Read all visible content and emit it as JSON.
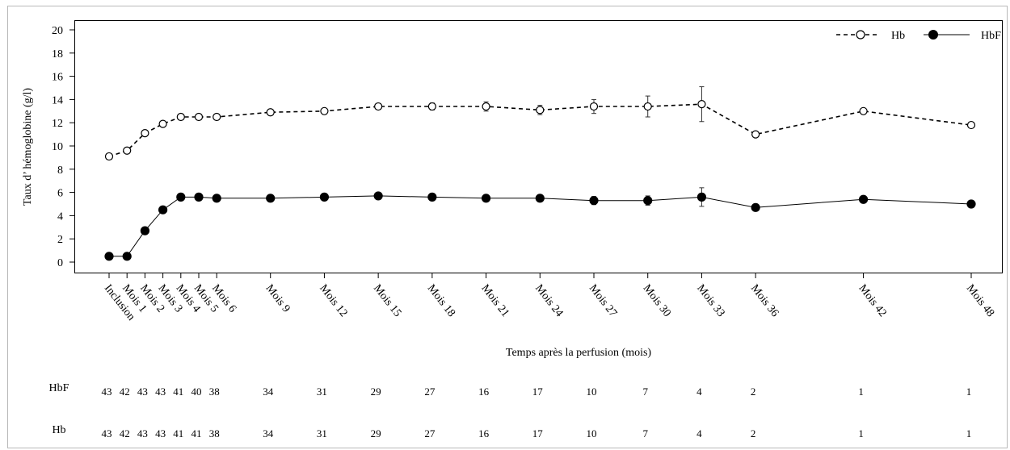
{
  "chart_data": {
    "type": "line",
    "ylabel": "Taux d’ hémoglobine (g/l)",
    "xlabel": "Temps après la perfusion (mois)",
    "ylim": [
      0,
      20
    ],
    "yticks": [
      0,
      2,
      4,
      6,
      8,
      10,
      12,
      14,
      16,
      18,
      20
    ],
    "x": [
      0,
      1,
      2,
      3,
      4,
      5,
      6,
      9,
      12,
      15,
      18,
      21,
      24,
      27,
      30,
      33,
      36,
      42,
      48
    ],
    "categories": [
      "Inclusion",
      "Mois 1",
      "Mois 2",
      "Mois 3",
      "Mois 4",
      "Mois 5",
      "Mois 6",
      "Mois 9",
      "Mois 12",
      "Mois 15",
      "Mois 18",
      "Mois 21",
      "Mois 24",
      "Mois 27",
      "Mois 30",
      "Mois 33",
      "Mois 36",
      "Mois 42",
      "Mois 48"
    ],
    "legend_position": "top-right",
    "grid": false,
    "series": [
      {
        "name": "Hb",
        "style": "dashed",
        "marker": "open-circle",
        "values": [
          9.1,
          9.6,
          11.1,
          11.9,
          12.5,
          12.5,
          12.5,
          12.9,
          13.0,
          13.4,
          13.4,
          13.4,
          13.1,
          13.4,
          13.4,
          13.6,
          11.0,
          13.0,
          11.8
        ],
        "error": [
          0.2,
          0.2,
          0.2,
          0.2,
          0.2,
          0.2,
          0.2,
          0.2,
          0.2,
          0.2,
          0.3,
          0.4,
          0.4,
          0.6,
          0.9,
          1.5,
          0,
          0,
          0
        ]
      },
      {
        "name": "HbF",
        "style": "solid",
        "marker": "filled-circle",
        "values": [
          0.5,
          0.5,
          2.7,
          4.5,
          5.6,
          5.6,
          5.5,
          5.5,
          5.6,
          5.7,
          5.6,
          5.5,
          5.5,
          5.3,
          5.3,
          5.6,
          4.7,
          5.4,
          5.0
        ],
        "error": [
          0.1,
          0.1,
          0.1,
          0.1,
          0.15,
          0.15,
          0.15,
          0.1,
          0.1,
          0.15,
          0.15,
          0.1,
          0.15,
          0.35,
          0.4,
          0.8,
          0,
          0,
          0
        ]
      }
    ],
    "risk_table": [
      {
        "label": "HbF",
        "counts": [
          "43",
          "42",
          "43",
          "43",
          "41",
          "40",
          "38",
          "34",
          "31",
          "29",
          "27",
          "16",
          "17",
          "10",
          "7",
          "4",
          "2",
          "1",
          "1"
        ]
      },
      {
        "label": "Hb",
        "counts": [
          "43",
          "42",
          "43",
          "43",
          "41",
          "41",
          "38",
          "34",
          "31",
          "29",
          "27",
          "16",
          "17",
          "10",
          "7",
          "4",
          "2",
          "1",
          "1"
        ]
      }
    ]
  }
}
